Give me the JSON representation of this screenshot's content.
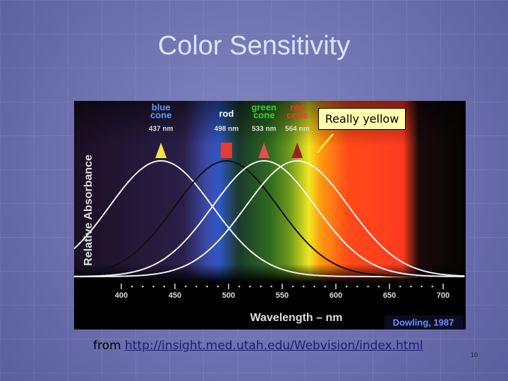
{
  "title": "Color Sensitivity",
  "chart": {
    "y_label": "Relative Absorbance",
    "x_label": "Wavelength – nm",
    "credit": "Dowling, 1987",
    "xlim": [
      356,
      721
    ],
    "xticks": [
      400,
      450,
      500,
      550,
      600,
      650,
      700
    ],
    "receptors": [
      {
        "name": [
          "blue",
          "cone"
        ],
        "peak_label": "437 nm",
        "peak": 437,
        "label_color": "#5b9cff",
        "marker_color": "#f4e04a",
        "marker": "triangle",
        "curve_color": "#f2f2f2"
      },
      {
        "name": [
          "rod"
        ],
        "peak_label": "498 nm",
        "peak": 498,
        "label_color": "#ffffff",
        "marker_color": "#e04030",
        "marker": "square",
        "curve_color": "#111111"
      },
      {
        "name": [
          "green",
          "cone"
        ],
        "peak_label": "533 nm",
        "peak": 533,
        "label_color": "#3ecf3e",
        "marker_color": "#e05050",
        "marker": "triangle",
        "curve_color": "#f2f2f2"
      },
      {
        "name": [
          "red",
          "cone"
        ],
        "peak_label": "564 nm",
        "peak": 564,
        "label_color": "#ff3030",
        "marker_color": "#a02020",
        "marker": "triangle",
        "curve_color": "#f2f2f2"
      }
    ]
  },
  "callout": "Really yellow",
  "source": {
    "prefix": "from",
    "link": "http://insight.med.utah.edu/Webvision/index.html"
  },
  "page_number": "10"
}
